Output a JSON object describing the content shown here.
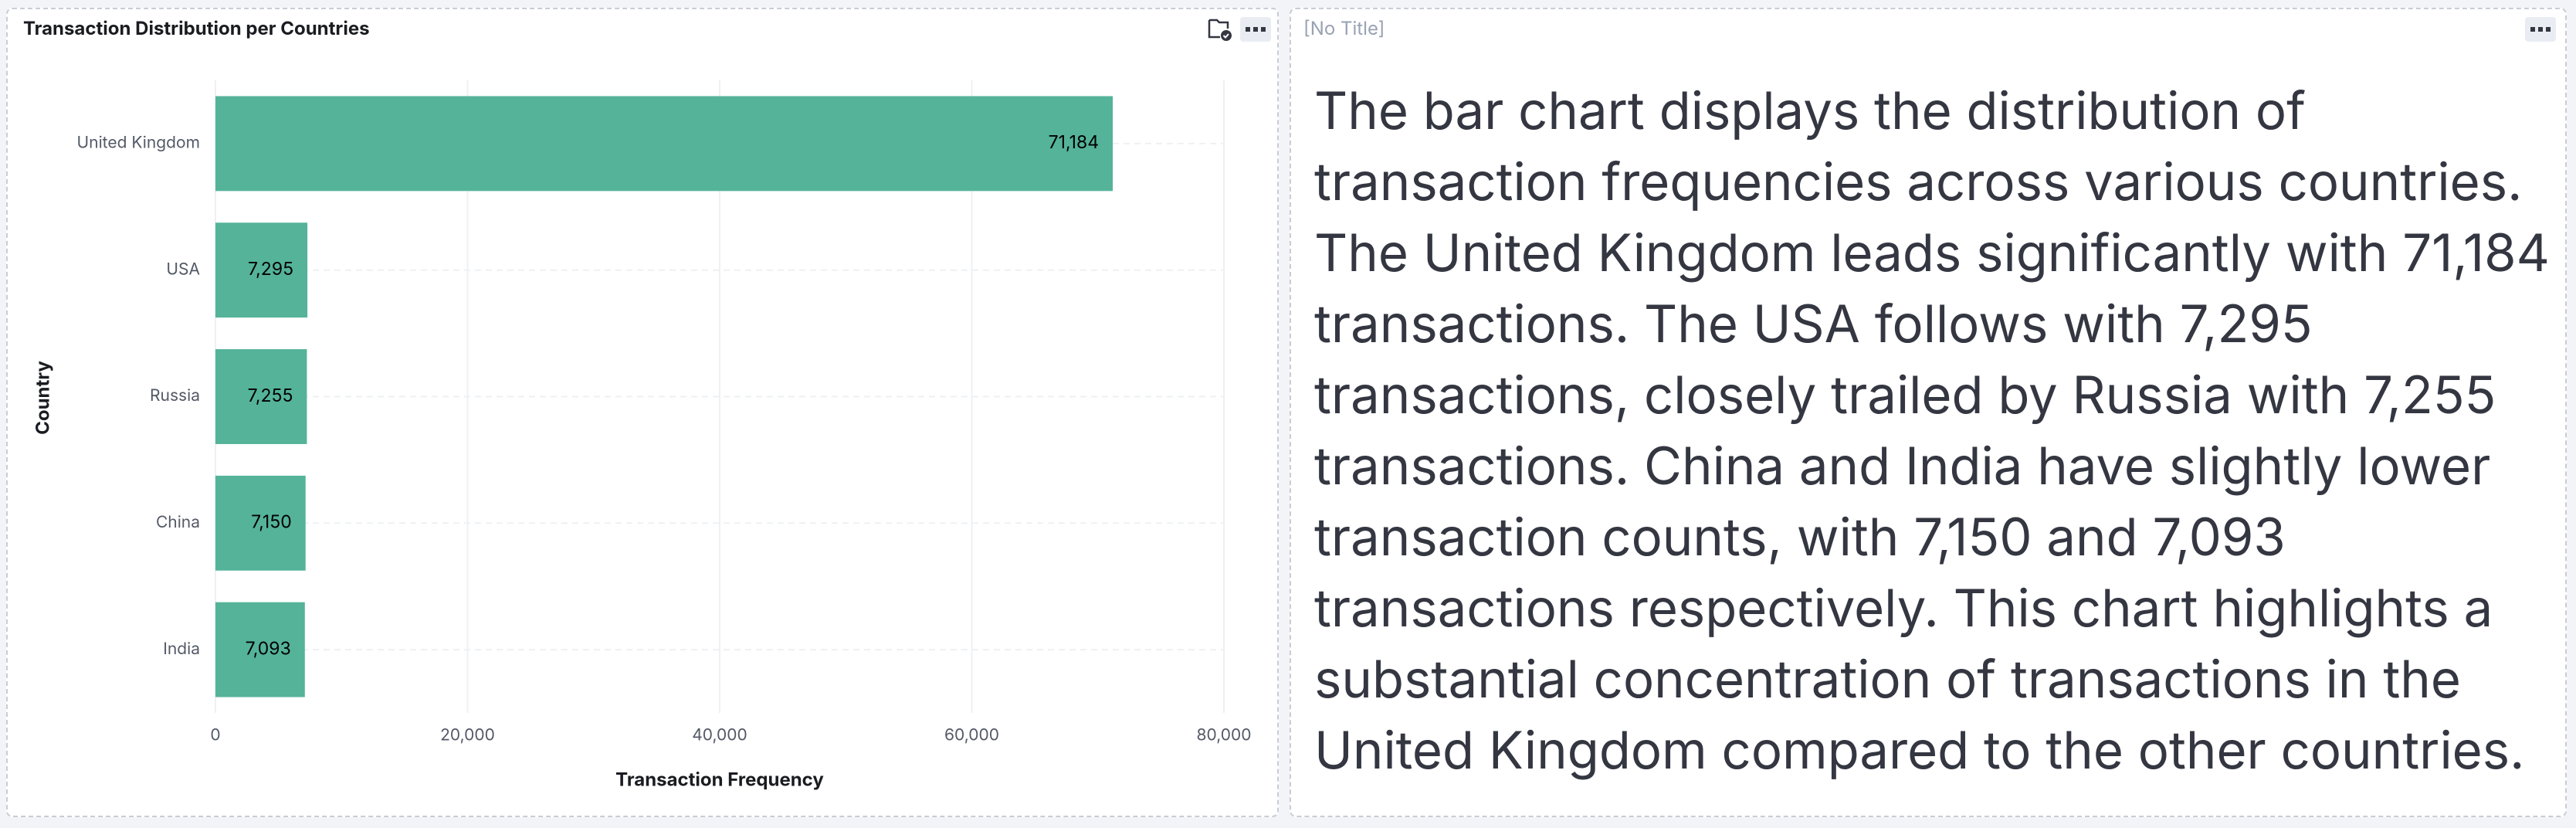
{
  "chart_data": {
    "type": "hbar",
    "title": "Transaction Distribution per Countries",
    "categories": [
      "United Kingdom",
      "USA",
      "Russia",
      "China",
      "India"
    ],
    "values": [
      71184,
      7295,
      7255,
      7150,
      7093
    ],
    "value_labels": [
      "71,184",
      "7,295",
      "7,255",
      "7,150",
      "7,093"
    ],
    "color": "#54b399",
    "xlabel": "Transaction Frequency",
    "ylabel": "Country",
    "xlim": [
      0,
      80000
    ],
    "xticks": [
      0,
      {
        "value": 20000,
        "label": "20,000"
      },
      {
        "value": 40000,
        "label": "40,000"
      },
      {
        "value": 60000,
        "label": "60,000"
      },
      {
        "value": 80000,
        "label": "80,000"
      }
    ],
    "grid": true
  },
  "text_panel": {
    "title": "[No Title]",
    "body": "The bar chart displays the distribution of transaction frequencies across various countries. The United Kingdom leads significantly with 71,184 transactions. The USA follows with 7,295 transactions, closely trailed by Russia with 7,255 transactions. China and India have slightly lower transaction counts, with 7,150 and 7,093 transactions respectively. This chart highlights a substantial concentration of transactions in the United Kingdom compared to the other countries."
  }
}
